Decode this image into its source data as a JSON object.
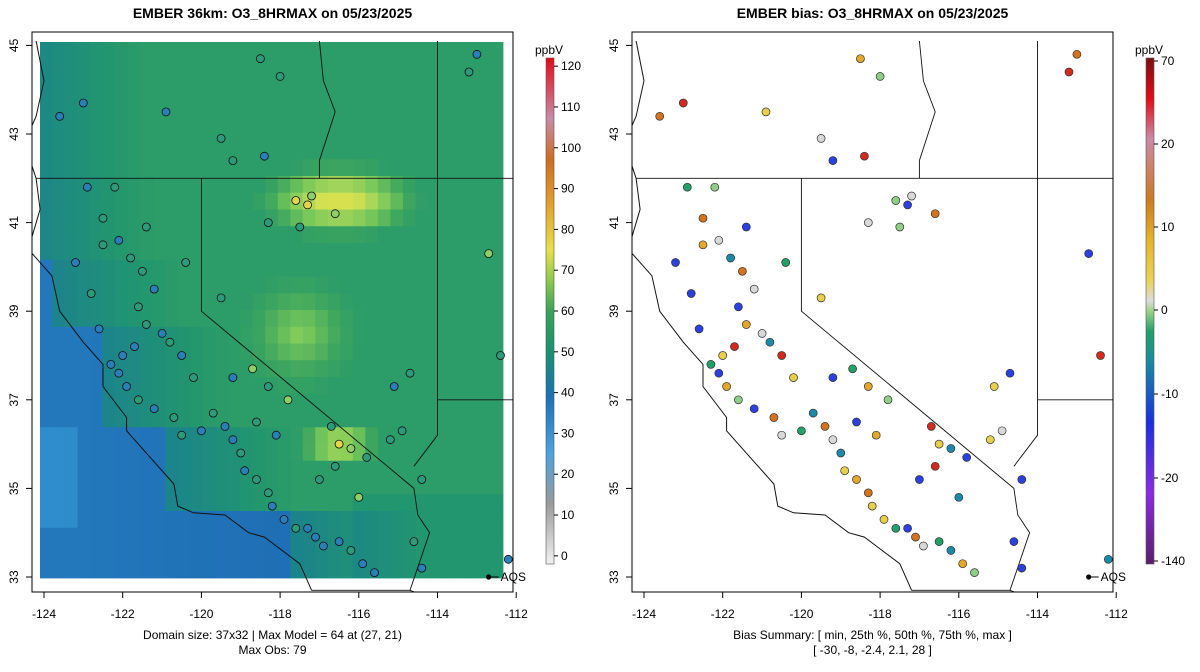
{
  "left_panel": {
    "title": "EMBER 36km: O3_8HRMAX on 05/23/2025",
    "footer_line1": "Domain size: 37x32 | Max Model = 64 at (27, 21)",
    "footer_line2": "Max Obs: 79",
    "colorbar": {
      "unit": "ppbV",
      "ticks": [
        "0",
        "10",
        "20",
        "30",
        "40",
        "50",
        "60",
        "70",
        "80",
        "90",
        "100",
        "110",
        "120"
      ],
      "range": [
        -2,
        122
      ]
    }
  },
  "right_panel": {
    "title": "EMBER bias: O3_8HRMAX on 05/23/2025",
    "footer_line1": "Bias Summary: [ min, 25th %, 50th %, 75th %, max ]",
    "footer_line2": "[ -30,  -8,  -2.4,  2.1,  28 ]",
    "colorbar": {
      "unit": "ppbV",
      "ticks": [
        "-140",
        "-20",
        "-10",
        "0",
        "10",
        "20",
        "70"
      ]
    }
  },
  "axes": {
    "x_ticks": [
      "-124",
      "-122",
      "-120",
      "-118",
      "-116",
      "-114",
      "-112"
    ],
    "y_ticks": [
      "33",
      "35",
      "37",
      "39",
      "41",
      "43",
      "45"
    ],
    "lon_range": [
      -124.3,
      -111.7
    ],
    "lat_range": [
      32.8,
      45.1
    ]
  },
  "reference_point": {
    "label": "AQS",
    "lon": -112.7,
    "lat": 33.0
  },
  "colors": {
    "ocean_low": "#1e6fb4",
    "ocean": "#3598d4",
    "mid": "#2a9e7c",
    "high": "#a8d460",
    "peak": "#cfe260",
    "boundary": "#111111"
  }
}
